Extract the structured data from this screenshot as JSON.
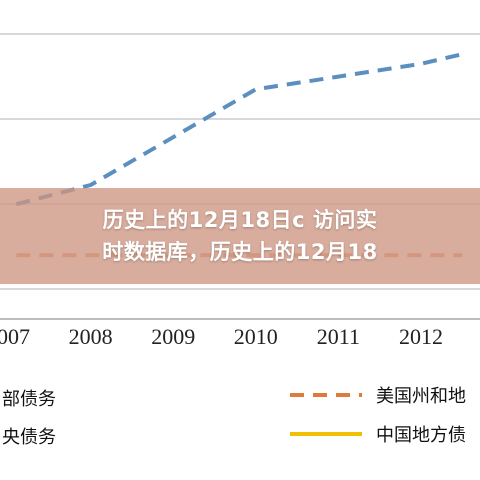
{
  "banner": {
    "line1": "历史上的12月18日c 访问实",
    "line2": "时数据库，历史上的12月18"
  },
  "chart_data": {
    "type": "line",
    "x": [
      "2007",
      "2008",
      "2009",
      "2010",
      "2011",
      "2012"
    ],
    "series": [
      {
        "name": "",
        "style": "dashed",
        "color": "#5b8fbf",
        "points": [
          [
            2007.1,
            0.36
          ],
          [
            2008.0,
            0.42
          ],
          [
            2009.0,
            0.57
          ],
          [
            2010.0,
            0.72
          ],
          [
            2011.0,
            0.76
          ],
          [
            2012.0,
            0.8
          ],
          [
            2012.5,
            0.83
          ]
        ]
      },
      {
        "name": "",
        "style": "dashed",
        "color": "#e79a73",
        "points": [
          [
            2007.1,
            0.2
          ],
          [
            2012.5,
            0.2
          ]
        ]
      }
    ],
    "xlim": [
      2007.05,
      2012.55
    ],
    "ylim": [
      0.0,
      1.0
    ],
    "grid": true,
    "legend": [
      {
        "label": "部债务",
        "style": "dashed",
        "color": "#5b8fbf"
      },
      {
        "label": "美国州和地",
        "style": "dashed",
        "color": "#e07a3a"
      },
      {
        "label": "央债务",
        "style": "solid",
        "color": "#5b8fbf"
      },
      {
        "label": "中国地方债",
        "style": "solid",
        "color": "#f0c000"
      }
    ],
    "legend_position": "bottom"
  }
}
